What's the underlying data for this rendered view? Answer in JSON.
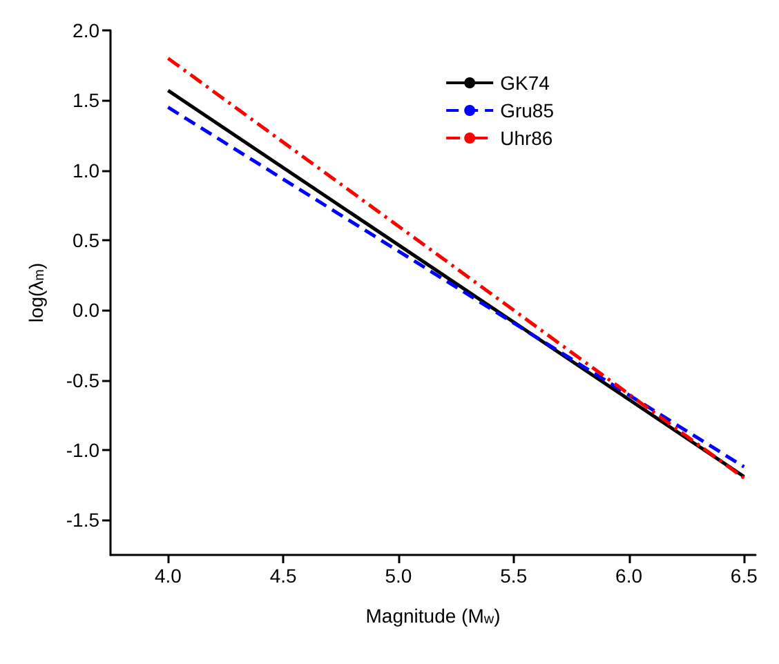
{
  "chart_data": {
    "type": "line",
    "xlabel": "Magnitude (M$_{w}$)",
    "ylabel": "log(λ$_{m}$)",
    "x": [
      4.0,
      6.5
    ],
    "xlim": [
      3.75,
      6.55
    ],
    "xticks": [
      {
        "value": 4,
        "label": "4.0"
      },
      4.5,
      {
        "value": 5,
        "label": "5.0"
      },
      5.5,
      {
        "value": 6,
        "label": "6.0"
      },
      6.5
    ],
    "ylim": [
      -1.75,
      2.0
    ],
    "yticks": [
      -1.5,
      {
        "value": -1,
        "label": "-1.0"
      },
      -0.5,
      {
        "value": 0,
        "label": "0.0"
      },
      0.5,
      {
        "value": 1,
        "label": "1.0"
      },
      1.5,
      {
        "value": 2,
        "label": "2.0"
      }
    ],
    "grid": false,
    "legend": "top right",
    "marker": "none",
    "series": [
      {
        "name": "GK74",
        "color": "#000000",
        "line_style": "solid",
        "values": [
          1.57,
          -1.19
        ]
      },
      {
        "name": "Gru85",
        "color": "#0000ff",
        "line_style": "dashed",
        "values": [
          1.45,
          -1.12
        ]
      },
      {
        "name": "Uhr86",
        "color": "#ff0000",
        "line_style": "dashdot",
        "values": [
          1.8,
          -1.2
        ]
      }
    ]
  }
}
